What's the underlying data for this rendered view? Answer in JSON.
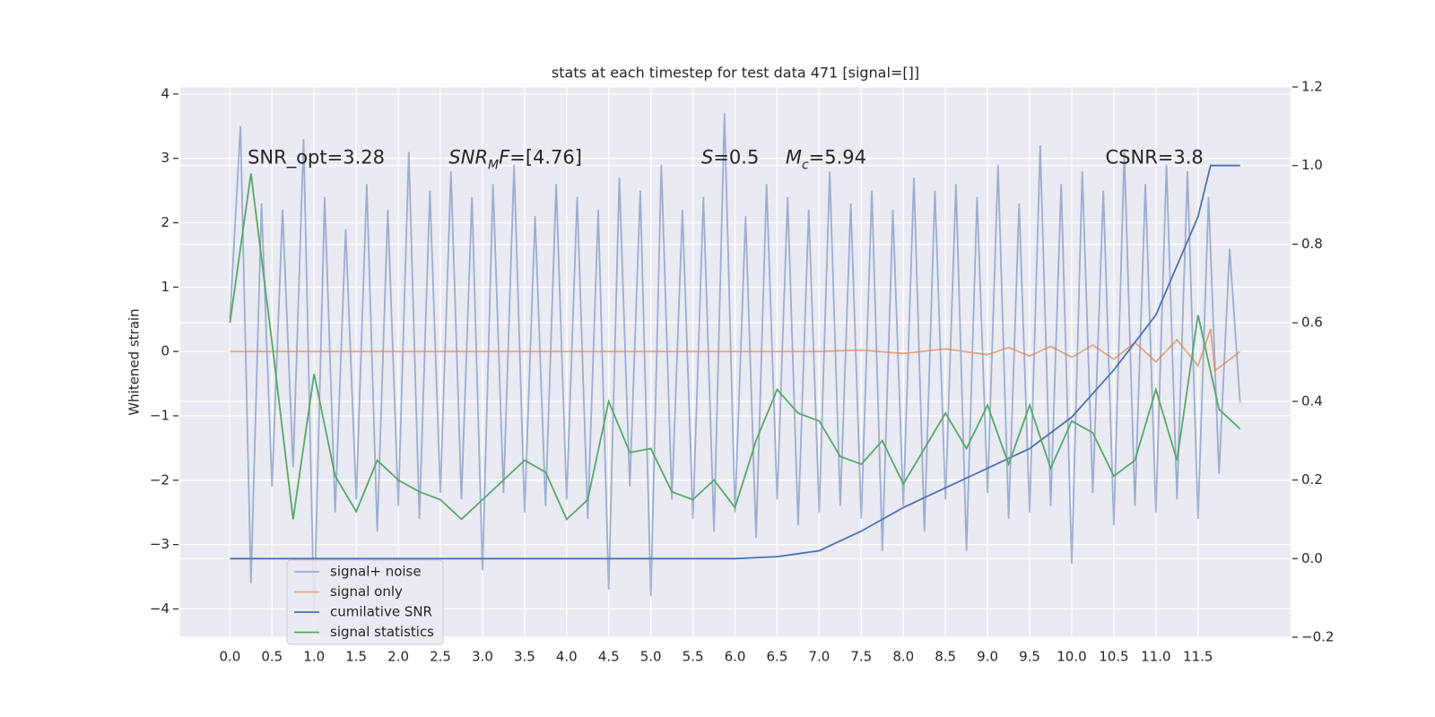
{
  "chart_data": {
    "type": "line",
    "title": "stats at each timestep for test data 471 [signal=[]]",
    "ylabel": "Whitened strain",
    "grid": true,
    "legend": "lower left",
    "xlim": [
      -0.59,
      12.6
    ],
    "ylim": [
      -4.44,
      4.11
    ],
    "y2lim": [
      -0.2,
      1.2
    ],
    "xticks": [
      {
        "value": 0,
        "label": "0.0"
      },
      {
        "value": 0.5,
        "label": "0.5"
      },
      {
        "value": 1,
        "label": "1.0"
      },
      {
        "value": 1.5,
        "label": "1.5"
      },
      {
        "value": 2,
        "label": "2.0"
      },
      {
        "value": 2.5,
        "label": "2.5"
      },
      {
        "value": 3,
        "label": "3.0"
      },
      {
        "value": 3.5,
        "label": "3.5"
      },
      {
        "value": 4,
        "label": "4.0"
      },
      {
        "value": 4.5,
        "label": "4.5"
      },
      {
        "value": 5,
        "label": "5.0"
      },
      {
        "value": 5.5,
        "label": "5.5"
      },
      {
        "value": 6,
        "label": "6.0"
      },
      {
        "value": 6.5,
        "label": "6.5"
      },
      {
        "value": 7,
        "label": "7.0"
      },
      {
        "value": 7.5,
        "label": "7.5"
      },
      {
        "value": 8,
        "label": "8.0"
      },
      {
        "value": 8.5,
        "label": "8.5"
      },
      {
        "value": 9,
        "label": "9.0"
      },
      {
        "value": 9.5,
        "label": "9.5"
      },
      {
        "value": 10,
        "label": "10.0"
      },
      {
        "value": 10.5,
        "label": "10.5"
      },
      {
        "value": 11,
        "label": "11.0"
      },
      {
        "value": 11.5,
        "label": "11.5"
      }
    ],
    "yticks": [
      {
        "value": -4,
        "label": "−4"
      },
      {
        "value": -3,
        "label": "−3"
      },
      {
        "value": -2,
        "label": "−2"
      },
      {
        "value": -1,
        "label": "−1"
      },
      0,
      1,
      2,
      3,
      4
    ],
    "y2ticks": [
      {
        "value": -0.2,
        "label": "−0.2"
      },
      {
        "value": 0,
        "label": "0.0"
      },
      {
        "value": 0.2,
        "label": "0.2"
      },
      {
        "value": 0.4,
        "label": "0.4"
      },
      {
        "value": 0.6,
        "label": "0.6"
      },
      {
        "value": 0.8,
        "label": "0.8"
      },
      {
        "value": 1,
        "label": "1.0"
      },
      {
        "value": 1.2,
        "label": "1.2"
      }
    ],
    "annotations": [
      {
        "x": 0.21,
        "y": 3,
        "parts": [
          {
            "text": "SNR_opt=3.28"
          }
        ]
      },
      {
        "x": 2.6,
        "y": 3,
        "parts": [
          {
            "text": "SNR",
            "italic": true
          },
          {
            "text": "M",
            "italic": true,
            "sub": true
          },
          {
            "text": "F",
            "italic": true
          },
          {
            "text": "=[4.76]"
          }
        ]
      },
      {
        "x": 5.6,
        "y": 3,
        "parts": [
          {
            "text": "S",
            "italic": true
          },
          {
            "text": "=0.5"
          }
        ]
      },
      {
        "x": 6.6,
        "y": 3,
        "parts": [
          {
            "text": "M",
            "italic": true
          },
          {
            "text": "c",
            "italic": true,
            "sub": true
          },
          {
            "text": "=5.94"
          }
        ]
      },
      {
        "x": 10.4,
        "y": 3,
        "parts": [
          {
            "text": "CSNR=3.8"
          }
        ]
      }
    ],
    "series": [
      {
        "name": "signal+ noise",
        "color": "#4c72b0",
        "alpha": 0.5,
        "x": [
          0,
          0.125,
          0.25,
          0.375,
          0.5,
          0.625,
          0.75,
          0.875,
          1,
          1.125,
          1.25,
          1.375,
          1.5,
          1.625,
          1.75,
          1.875,
          2,
          2.125,
          2.25,
          2.375,
          2.5,
          2.625,
          2.75,
          2.875,
          3,
          3.125,
          3.25,
          3.375,
          3.5,
          3.625,
          3.75,
          3.875,
          4,
          4.125,
          4.25,
          4.375,
          4.5,
          4.625,
          4.75,
          4.875,
          5,
          5.125,
          5.25,
          5.375,
          5.5,
          5.625,
          5.75,
          5.875,
          6,
          6.125,
          6.25,
          6.375,
          6.5,
          6.625,
          6.75,
          6.875,
          7,
          7.125,
          7.25,
          7.375,
          7.5,
          7.625,
          7.75,
          7.875,
          8,
          8.125,
          8.25,
          8.375,
          8.5,
          8.625,
          8.75,
          8.875,
          9,
          9.125,
          9.25,
          9.375,
          9.5,
          9.625,
          9.75,
          9.875,
          10,
          10.125,
          10.25,
          10.375,
          10.5,
          10.625,
          10.75,
          10.875,
          11,
          11.125,
          11.25,
          11.375,
          11.5,
          11.625,
          11.75,
          11.875,
          12
        ],
        "values": [
          0.5,
          3.5,
          -3.6,
          2.3,
          -2.1,
          2.2,
          -1.8,
          3.3,
          -4.1,
          2.4,
          -2.5,
          1.9,
          -2.3,
          2.6,
          -2.8,
          2.2,
          -2.4,
          3.1,
          -2.6,
          2.5,
          -2.2,
          2.8,
          -2.3,
          2.4,
          -3.4,
          2.6,
          -2.2,
          2.9,
          -2.5,
          2.1,
          -2.4,
          2.6,
          -2.3,
          2.4,
          -2.6,
          2.2,
          -3.7,
          2.7,
          -2.1,
          2.5,
          -3.8,
          2.9,
          -2.3,
          2.2,
          -2.6,
          2.4,
          -2.8,
          3.7,
          -2.5,
          2.1,
          -2.9,
          2.6,
          -2.3,
          2.4,
          -2.7,
          2.2,
          -2.5,
          2.8,
          -2.4,
          2.3,
          -2.6,
          2.5,
          -3.1,
          2.2,
          -2.4,
          2.7,
          -2.8,
          2.5,
          -2.3,
          2.6,
          -3.1,
          2.4,
          -2.2,
          2.9,
          -2.6,
          2.3,
          -2.5,
          3.2,
          -2.4,
          2.6,
          -3.3,
          2.8,
          -2.2,
          2.5,
          -2.7,
          3.1,
          -2.4,
          2.6,
          -2.5,
          2.9,
          -2.3,
          2.8,
          -2.6,
          2.4,
          -1.9,
          1.6,
          -0.8
        ]
      },
      {
        "name": "signal only",
        "color": "#dd8452",
        "alpha": 0.7,
        "x": [
          0,
          7,
          7.5,
          8,
          8.5,
          9,
          9.25,
          9.5,
          9.75,
          10,
          10.25,
          10.5,
          10.75,
          11,
          11.25,
          11.5,
          11.65,
          11.7,
          12
        ],
        "values": [
          0,
          0,
          0.02,
          -0.03,
          0.04,
          -0.05,
          0.06,
          -0.07,
          0.08,
          -0.09,
          0.1,
          -0.12,
          0.14,
          -0.16,
          0.18,
          -0.22,
          0.35,
          -0.3,
          0
        ]
      },
      {
        "name": "cumilative SNR",
        "color": "#4c72b0",
        "axis": "y2",
        "x": [
          0,
          6,
          6.5,
          7,
          7.5,
          8,
          8.5,
          9,
          9.5,
          10,
          10.5,
          11,
          11.5,
          11.65,
          12
        ],
        "values": [
          0,
          0,
          0.005,
          0.02,
          0.07,
          0.13,
          0.18,
          0.23,
          0.28,
          0.36,
          0.48,
          0.62,
          0.87,
          1.0,
          1.0
        ]
      },
      {
        "name": "signal statistics",
        "color": "#55a868",
        "axis": "y2",
        "x": [
          0,
          0.25,
          0.5,
          0.75,
          1,
          1.25,
          1.5,
          1.75,
          2,
          2.25,
          2.5,
          2.75,
          3,
          3.25,
          3.5,
          3.75,
          4,
          4.25,
          4.5,
          4.75,
          5,
          5.25,
          5.5,
          5.75,
          6,
          6.25,
          6.5,
          6.75,
          7,
          7.25,
          7.5,
          7.75,
          8,
          8.25,
          8.5,
          8.75,
          9,
          9.25,
          9.5,
          9.75,
          10,
          10.25,
          10.5,
          10.75,
          11,
          11.25,
          11.5,
          11.75,
          12
        ],
        "values": [
          0.6,
          0.98,
          0.55,
          0.1,
          0.47,
          0.21,
          0.12,
          0.25,
          0.2,
          0.17,
          0.15,
          0.1,
          0.15,
          0.2,
          0.25,
          0.22,
          0.1,
          0.15,
          0.4,
          0.27,
          0.28,
          0.17,
          0.15,
          0.2,
          0.13,
          0.3,
          0.43,
          0.37,
          0.35,
          0.26,
          0.24,
          0.3,
          0.19,
          0.28,
          0.37,
          0.28,
          0.39,
          0.24,
          0.39,
          0.23,
          0.35,
          0.32,
          0.21,
          0.25,
          0.43,
          0.25,
          0.62,
          0.38,
          0.33
        ]
      }
    ]
  }
}
